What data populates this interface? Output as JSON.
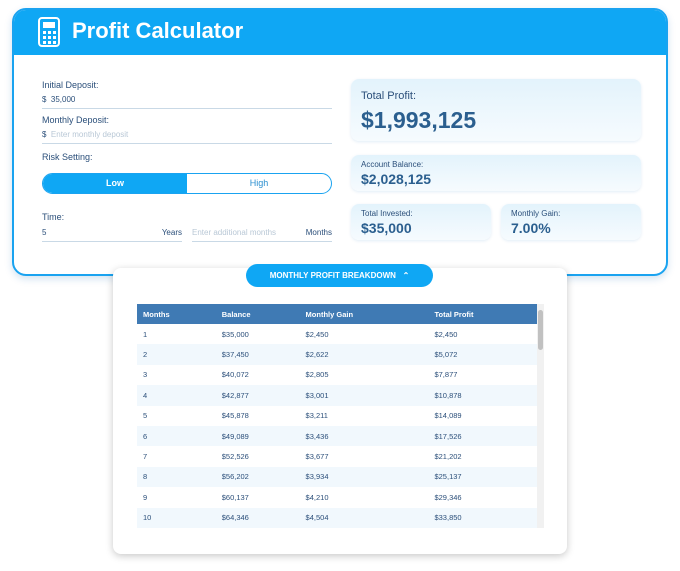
{
  "header": {
    "title": "Profit Calculator"
  },
  "form": {
    "initial_deposit": {
      "label": "Initial Deposit:",
      "prefix": "$",
      "value": "35,000"
    },
    "monthly_deposit": {
      "label": "Monthly Deposit:",
      "prefix": "$",
      "placeholder": "Enter monthly deposit"
    },
    "risk": {
      "label": "Risk Setting:",
      "options": [
        "Low",
        "High"
      ]
    },
    "time": {
      "label": "Time:",
      "years_value": "5",
      "years_unit": "Years",
      "months_placeholder": "Enter additional months",
      "months_unit": "Months"
    }
  },
  "results": {
    "total_profit": {
      "label": "Total Profit:",
      "value": "$1,993,125"
    },
    "account_balance": {
      "label": "Account Balance:",
      "value": "$2,028,125"
    },
    "total_invested": {
      "label": "Total Invested:",
      "value": "$35,000"
    },
    "monthly_gain": {
      "label": "Monthly Gain:",
      "value": "7.00%"
    }
  },
  "breakdown_button": "MONTHLY PROFIT BREAKDOWN",
  "table": {
    "columns": [
      "Months",
      "Balance",
      "Monthly Gain",
      "Total Profit"
    ],
    "rows": [
      [
        "1",
        "$35,000",
        "$2,450",
        "$2,450"
      ],
      [
        "2",
        "$37,450",
        "$2,622",
        "$5,072"
      ],
      [
        "3",
        "$40,072",
        "$2,805",
        "$7,877"
      ],
      [
        "4",
        "$42,877",
        "$3,001",
        "$10,878"
      ],
      [
        "5",
        "$45,878",
        "$3,211",
        "$14,089"
      ],
      [
        "6",
        "$49,089",
        "$3,436",
        "$17,526"
      ],
      [
        "7",
        "$52,526",
        "$3,677",
        "$21,202"
      ],
      [
        "8",
        "$56,202",
        "$3,934",
        "$25,137"
      ],
      [
        "9",
        "$60,137",
        "$4,210",
        "$29,346"
      ],
      [
        "10",
        "$64,346",
        "$4,504",
        "$33,850"
      ]
    ]
  }
}
